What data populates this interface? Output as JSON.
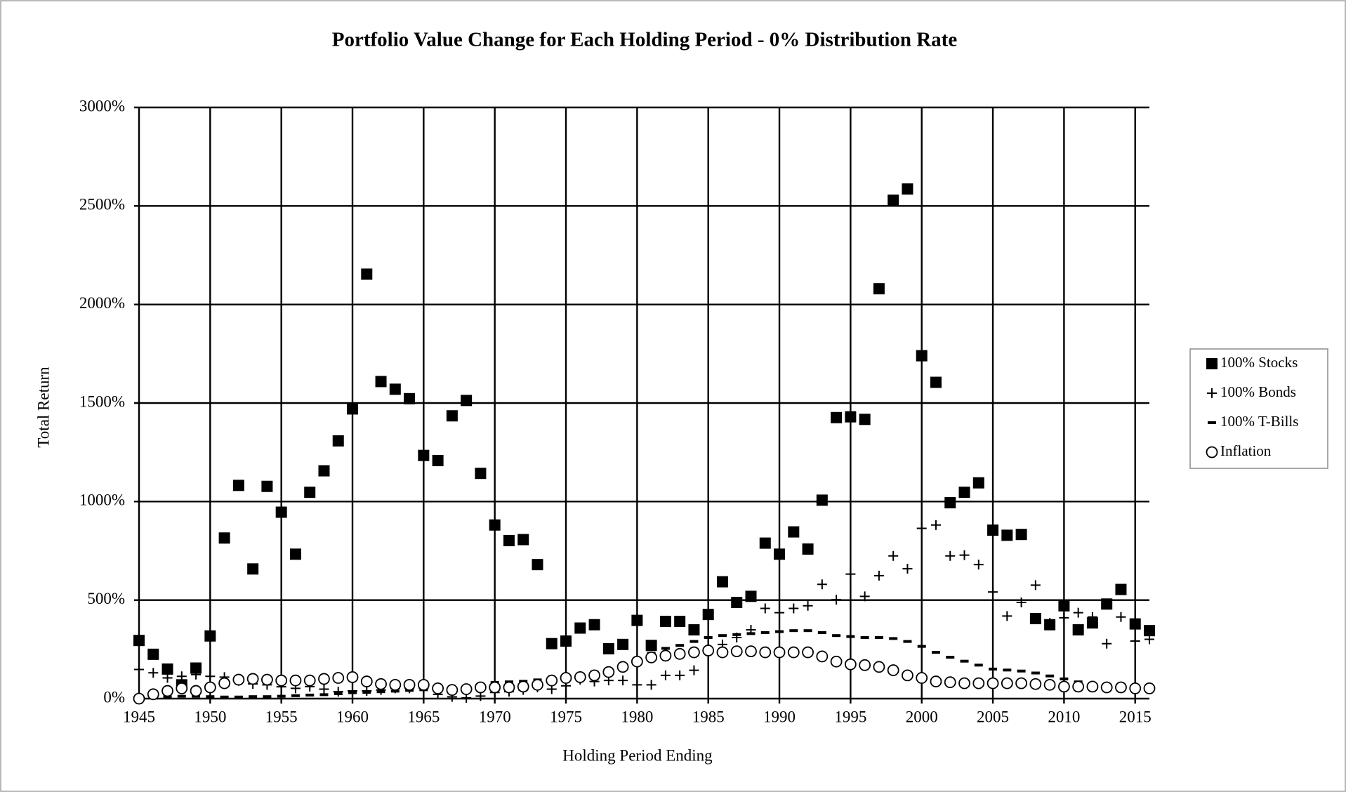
{
  "chart_data": {
    "type": "scatter",
    "title": "Portfolio Value Change for Each Holding Period - 0% Distribution Rate",
    "x_label": "Holding Period Ending",
    "y_label": "Total Return",
    "x": [
      1945,
      1946,
      1947,
      1948,
      1949,
      1950,
      1951,
      1952,
      1953,
      1954,
      1955,
      1956,
      1957,
      1958,
      1959,
      1960,
      1961,
      1962,
      1963,
      1964,
      1965,
      1966,
      1967,
      1968,
      1969,
      1970,
      1971,
      1972,
      1973,
      1974,
      1975,
      1976,
      1977,
      1978,
      1979,
      1980,
      1981,
      1982,
      1983,
      1984,
      1985,
      1986,
      1987,
      1988,
      1989,
      1990,
      1991,
      1992,
      1993,
      1994,
      1995,
      1996,
      1997,
      1998,
      1999,
      2000,
      2001,
      2002,
      2003,
      2004,
      2005,
      2006,
      2007,
      2008,
      2009,
      2010,
      2011,
      2012,
      2013,
      2014,
      2015,
      2016
    ],
    "xlim": [
      1945,
      2016
    ],
    "xticks": [
      1945,
      1950,
      1955,
      1960,
      1965,
      1970,
      1975,
      1980,
      1985,
      1990,
      1995,
      2000,
      2005,
      2010,
      2015
    ],
    "ylim": [
      0,
      3000
    ],
    "yticks": [
      {
        "value": 0,
        "label": "0%"
      },
      {
        "value": 500,
        "label": "500%"
      },
      {
        "value": 1000,
        "label": "1000%"
      },
      {
        "value": 1500,
        "label": "1500%"
      },
      {
        "value": 2000,
        "label": "2000%"
      },
      {
        "value": 2500,
        "label": "2500%"
      },
      {
        "value": 3000,
        "label": "3000%"
      }
    ],
    "grid": true,
    "legend": "right",
    "series": [
      {
        "name": "100% Stocks",
        "color": "#000000",
        "marker": "square",
        "values": [
          295,
          225,
          150,
          70,
          155,
          318,
          815,
          1082,
          658,
          1077,
          946,
          733,
          1047,
          1156,
          1308,
          1470,
          2154,
          1609,
          1570,
          1522,
          1234,
          1208,
          1435,
          1513,
          1143,
          881,
          802,
          807,
          680,
          279,
          292,
          358,
          375,
          253,
          275,
          397,
          270,
          392,
          392,
          349,
          427,
          593,
          488,
          519,
          789,
          733,
          846,
          759,
          1007,
          1426,
          1430,
          1417,
          2080,
          2529,
          2586,
          1740,
          1605,
          994,
          1047,
          1095,
          855,
          829,
          833,
          406,
          375,
          471,
          349,
          384,
          480,
          554,
          379,
          345
        ]
      },
      {
        "name": "100% Bonds",
        "color": "#000000",
        "marker": "plus",
        "values": [
          148,
          131,
          105,
          113,
          122,
          113,
          109,
          90,
          75,
          70,
          60,
          52,
          61,
          48,
          35,
          39,
          39,
          44,
          52,
          52,
          52,
          22,
          9,
          4,
          13,
          31,
          35,
          44,
          57,
          48,
          65,
          96,
          87,
          92,
          92,
          70,
          70,
          118,
          118,
          144,
          240,
          275,
          310,
          349,
          458,
          436,
          458,
          471,
          580,
          502,
          632,
          519,
          624,
          724,
          659,
          864,
          881,
          724,
          728,
          680,
          541,
          419,
          488,
          576,
          384,
          410,
          436,
          414,
          279,
          414,
          292,
          301
        ]
      },
      {
        "name": "100% T-Bills",
        "color": "#000000",
        "marker": "dash",
        "values": [
          5,
          8,
          10,
          12,
          12,
          10,
          8,
          8,
          10,
          10,
          12,
          15,
          18,
          20,
          25,
          30,
          32,
          35,
          38,
          42,
          45,
          48,
          52,
          58,
          70,
          82,
          85,
          88,
          95,
          105,
          115,
          125,
          135,
          150,
          170,
          200,
          230,
          255,
          270,
          290,
          310,
          320,
          325,
          330,
          335,
          340,
          345,
          345,
          335,
          320,
          315,
          310,
          310,
          305,
          290,
          265,
          235,
          210,
          190,
          170,
          150,
          145,
          140,
          130,
          115,
          100,
          85,
          75,
          68,
          62,
          58,
          55
        ]
      },
      {
        "name": "Inflation",
        "color": "#000000",
        "marker": "circle",
        "values": [
          0,
          22,
          39,
          52,
          39,
          57,
          78,
          96,
          100,
          96,
          92,
          92,
          92,
          100,
          105,
          109,
          87,
          74,
          70,
          70,
          70,
          52,
          44,
          48,
          57,
          57,
          57,
          61,
          70,
          92,
          105,
          109,
          118,
          135,
          161,
          188,
          209,
          218,
          227,
          235,
          244,
          235,
          240,
          240,
          235,
          235,
          235,
          235,
          214,
          188,
          174,
          170,
          161,
          144,
          118,
          105,
          87,
          83,
          78,
          78,
          78,
          78,
          78,
          74,
          70,
          61,
          61,
          61,
          57,
          57,
          52,
          52
        ]
      }
    ]
  }
}
